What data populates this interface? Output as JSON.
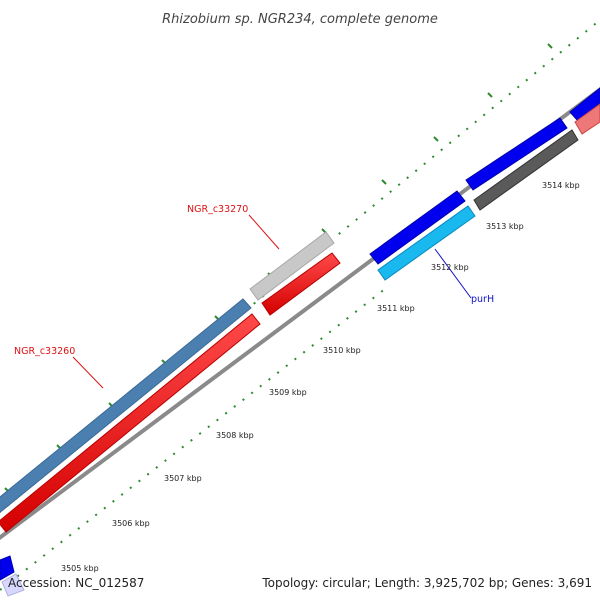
{
  "title": "Rhizobium sp. NGR234, complete genome",
  "footer": {
    "accession": "Accession: NC_012587",
    "summary": "Topology: circular; Length: 3,925,702 bp; Genes: 3,691"
  },
  "colors": {
    "backbone": "#888888",
    "tick": "#2e8b2e",
    "label_red": "#dd1111",
    "label_blue": "#1111cc"
  },
  "ticks": [
    {
      "label": "3505 kbp"
    },
    {
      "label": "3506 kbp"
    },
    {
      "label": "3507 kbp"
    },
    {
      "label": "3508 kbp"
    },
    {
      "label": "3509 kbp"
    },
    {
      "label": "3510 kbp"
    },
    {
      "label": "3511 kbp"
    },
    {
      "label": "3512 kbp"
    },
    {
      "label": "3513 kbp"
    },
    {
      "label": "3514 kbp"
    }
  ],
  "gene_labels": [
    {
      "text": "NGR_c33270",
      "color": "#dd1111"
    },
    {
      "text": "NGR_c33260",
      "color": "#dd1111"
    },
    {
      "text": "purH",
      "color": "#1111cc"
    }
  ]
}
